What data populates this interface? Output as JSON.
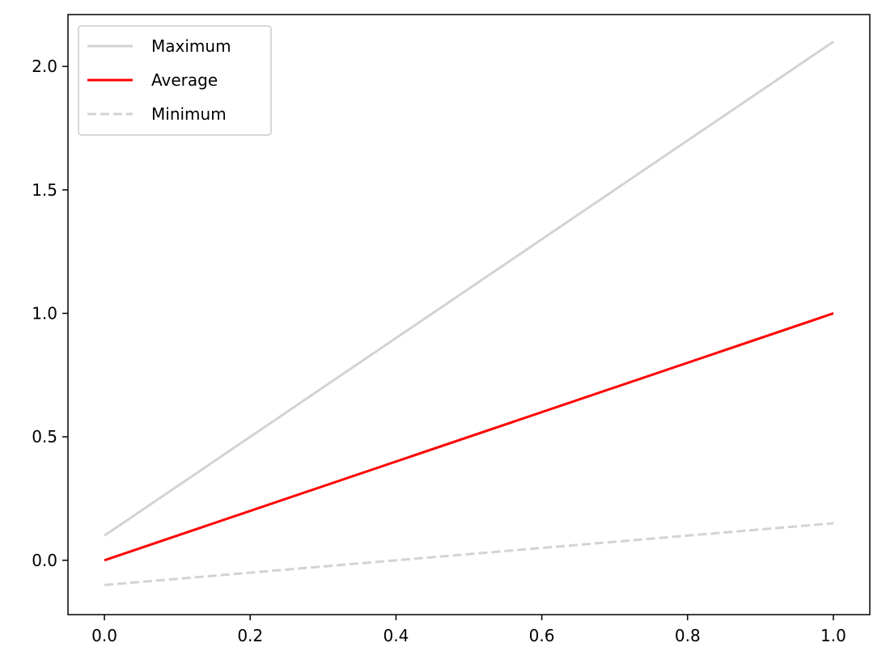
{
  "chart_data": {
    "type": "line",
    "title": "",
    "xlabel": "",
    "ylabel": "",
    "xlim": [
      -0.05,
      1.05
    ],
    "ylim": [
      -0.22,
      2.21
    ],
    "xticks": [
      0.0,
      0.2,
      0.4,
      0.6,
      0.8,
      1.0
    ],
    "xtick_labels": [
      "0.0",
      "0.2",
      "0.4",
      "0.6",
      "0.8",
      "1.0"
    ],
    "yticks": [
      0.0,
      0.5,
      1.0,
      1.5,
      2.0
    ],
    "ytick_labels": [
      "0.0",
      "0.5",
      "1.0",
      "1.5",
      "2.0"
    ],
    "grid": false,
    "legend_position": "top-left",
    "series": [
      {
        "name": "Maximum",
        "x": [
          0.0,
          1.0
        ],
        "y": [
          0.1,
          2.1
        ],
        "color": "#d3d3d3",
        "style": "solid"
      },
      {
        "name": "Average",
        "x": [
          0.0,
          1.0
        ],
        "y": [
          0.0,
          1.0
        ],
        "color": "#ff0000",
        "style": "solid"
      },
      {
        "name": "Minimum",
        "x": [
          0.0,
          1.0
        ],
        "y": [
          -0.1,
          0.15
        ],
        "color": "#d3d3d3",
        "style": "dashed"
      }
    ]
  }
}
